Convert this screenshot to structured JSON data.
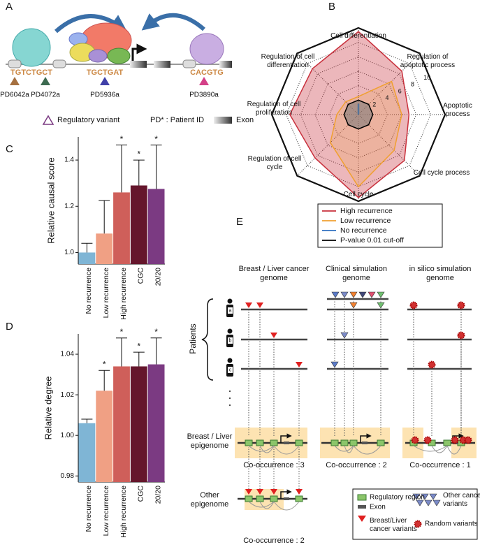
{
  "panel_labels": [
    "A",
    "B",
    "C",
    "D",
    "E"
  ],
  "panel_a": {
    "motifs": [
      "TGTCTGCT",
      "TGCTGAT",
      "CACGTG"
    ],
    "patients": [
      "PD6042a",
      "PD4072a",
      "PD5936a",
      "PD3890a"
    ],
    "legend": [
      "Regulatory variant",
      "PD* : Patient ID",
      "Exon"
    ]
  },
  "chart_data": [
    {
      "type": "radar",
      "categories": [
        "Cell differentiation",
        "Regulation of apoptotic process",
        "Apoptotic process",
        "Cell cycle process",
        "Cell cycle",
        "Regulation of cell cycle",
        "Regulation of cell proliferation",
        "Regulation of cell differentiation"
      ],
      "series": [
        {
          "name": "High recurrence",
          "color": "#c8303c",
          "values": [
            11.5,
            8.5,
            7,
            9,
            11.5,
            8.5,
            9.5,
            9
          ]
        },
        {
          "name": "Low recurrence",
          "color": "#f0a030",
          "values": [
            2.5,
            6.5,
            6,
            7,
            10,
            5.5,
            3,
            2.5
          ]
        },
        {
          "name": "No recurrence",
          "color": "#3070c0",
          "values": [
            1.5,
            0,
            0,
            0,
            0,
            0,
            0,
            0
          ]
        },
        {
          "name": "P-value 0.01 cut-off",
          "color": "#000000",
          "values": [
            2,
            2,
            2,
            2,
            2,
            2,
            2,
            2
          ]
        }
      ],
      "rlim": [
        0,
        12
      ],
      "rticks": [
        2,
        4,
        6,
        8,
        10
      ],
      "grid": true,
      "legend": "bottom"
    },
    {
      "type": "bar",
      "ylabel": "Relative causal score",
      "categories": [
        "No recurrence",
        "Low recurrence",
        "High recurrence",
        "CGC",
        "20/20"
      ],
      "values": [
        1.0,
        1.082,
        1.26,
        1.29,
        1.275
      ],
      "errors": [
        0.04,
        0.143,
        0.205,
        0.11,
        0.19
      ],
      "annotations": [
        null,
        null,
        "*",
        "*",
        "*"
      ],
      "colors": [
        "#7fb5d5",
        "#f0a084",
        "#cf5f5a",
        "#65162c",
        "#7b3a82"
      ],
      "ylim": [
        0.95,
        1.5
      ],
      "yticks": [
        {
          "value": 1,
          "label": "1.0"
        },
        1.2,
        1.4
      ]
    },
    {
      "type": "bar",
      "ylabel": "Relative degree",
      "categories": [
        "No recurrence",
        "Low recurrence",
        "High recurrence",
        "CGC",
        "20/20"
      ],
      "values": [
        1.006,
        1.022,
        1.034,
        1.034,
        1.035
      ],
      "errors": [
        0.002,
        0.01,
        0.014,
        0.007,
        0.013
      ],
      "annotations": [
        null,
        "*",
        "*",
        "*",
        "*"
      ],
      "colors": [
        "#7fb5d5",
        "#f0a084",
        "#cf5f5a",
        "#65162c",
        "#7b3a82"
      ],
      "ylim": [
        0.977,
        1.05
      ],
      "yticks": [
        0.98,
        {
          "value": 1,
          "label": "1.00"
        },
        1.02,
        1.04
      ]
    }
  ],
  "panel_e": {
    "columns": [
      "Breast / Liver cancer genome",
      "Clinical simulation genome",
      "in silico simulation genome"
    ],
    "patients_label": "Patients",
    "patient_ids": [
      "a",
      "b",
      "c"
    ],
    "rows": [
      "Breast / Liver epigenome",
      "Other epigenome"
    ],
    "cooccurrence": [
      "Co-occurrence : 3",
      "Co-occurrence : 2",
      "Co-occurrence : 1",
      "Co-occurrence : 2"
    ],
    "legend": [
      "Regulatory region",
      "Exon",
      "Breast/Liver cancer variants",
      "Other cancer variants",
      "Random variants"
    ]
  }
}
